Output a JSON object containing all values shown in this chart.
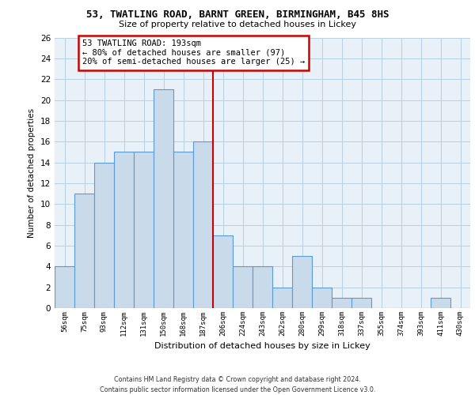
{
  "title1": "53, TWATLING ROAD, BARNT GREEN, BIRMINGHAM, B45 8HS",
  "title2": "Size of property relative to detached houses in Lickey",
  "xlabel": "Distribution of detached houses by size in Lickey",
  "ylabel": "Number of detached properties",
  "bin_labels": [
    "56sqm",
    "75sqm",
    "93sqm",
    "112sqm",
    "131sqm",
    "150sqm",
    "168sqm",
    "187sqm",
    "206sqm",
    "224sqm",
    "243sqm",
    "262sqm",
    "280sqm",
    "299sqm",
    "318sqm",
    "337sqm",
    "355sqm",
    "374sqm",
    "393sqm",
    "411sqm",
    "430sqm"
  ],
  "bar_values": [
    4,
    11,
    14,
    15,
    15,
    21,
    15,
    16,
    7,
    4,
    4,
    2,
    5,
    2,
    1,
    1,
    0,
    0,
    0,
    1,
    0
  ],
  "bar_color": "#c9daea",
  "bar_edgecolor": "#5b9bd5",
  "grid_color": "#b8cfe0",
  "bg_color": "#e8f0f8",
  "vline_color": "#cc0000",
  "annotation_text": "53 TWATLING ROAD: 193sqm\n← 80% of detached houses are smaller (97)\n20% of semi-detached houses are larger (25) →",
  "annotation_box_color": "#cc0000",
  "footer1": "Contains HM Land Registry data © Crown copyright and database right 2024.",
  "footer2": "Contains public sector information licensed under the Open Government Licence v3.0.",
  "ylim": [
    0,
    26
  ],
  "yticks": [
    0,
    2,
    4,
    6,
    8,
    10,
    12,
    14,
    16,
    18,
    20,
    22,
    24,
    26
  ],
  "vline_bar_index": 7
}
